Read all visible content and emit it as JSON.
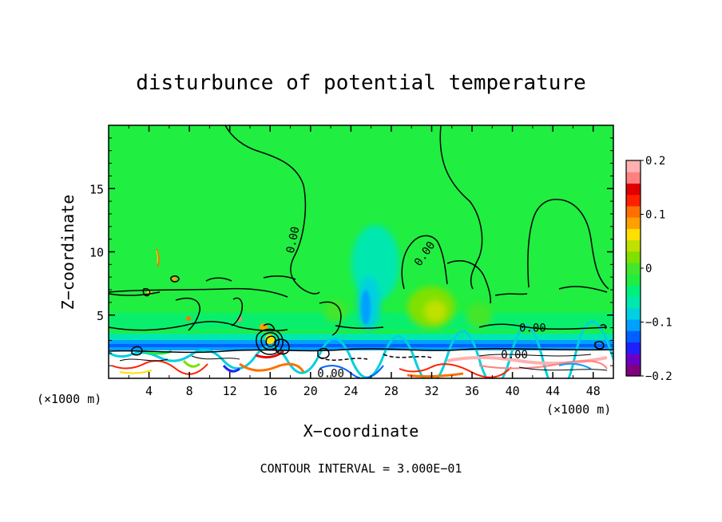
{
  "chart_data": {
    "type": "heatmap",
    "title": "disturbunce of potential temperature",
    "xlabel": "X−coordinate",
    "ylabel": "Z−coordinate",
    "x_unit_left": "(×1000 m)",
    "x_unit_right": "(×1000 m)",
    "xlim": [
      0,
      50
    ],
    "ylim": [
      0,
      20
    ],
    "x_ticks": [
      4,
      8,
      12,
      16,
      20,
      24,
      28,
      32,
      36,
      40,
      44,
      48
    ],
    "y_ticks": [
      5,
      10,
      15
    ],
    "colorbar": {
      "range": [
        -0.2,
        0.2
      ],
      "tick_values": [
        0.2,
        0.1,
        0,
        -0.1,
        -0.2
      ],
      "tick_labels": [
        "0.2",
        "0.1",
        "0",
        "−0.1",
        "−0.2"
      ],
      "colors": [
        "#800080",
        "#6a00c8",
        "#2020ff",
        "#0060ff",
        "#00a0ff",
        "#00d0e0",
        "#00e8b0",
        "#00f080",
        "#20ee40",
        "#44e62c",
        "#80e000",
        "#c0e000",
        "#ffe000",
        "#ffa000",
        "#ff7000",
        "#ff2000",
        "#e00000",
        "#ff8080",
        "#ffb0b0"
      ]
    },
    "background_value": 0.0,
    "contour_labels": [
      {
        "text": "0.00",
        "x": 18.6,
        "z": 11.2,
        "angle": -78
      },
      {
        "text": "0.00",
        "x": 31.6,
        "z": 10.0,
        "angle": -55
      },
      {
        "text": "0.00",
        "x": 42.0,
        "z": 4.0,
        "angle": 0
      },
      {
        "text": "0.00",
        "x": 40.2,
        "z": 1.9,
        "angle": 0
      },
      {
        "text": "0.00",
        "x": 22.0,
        "z": 0.4,
        "angle": 0
      }
    ],
    "contour_interval_text": "CONTOUR INTERVAL = 3.000E−01"
  }
}
